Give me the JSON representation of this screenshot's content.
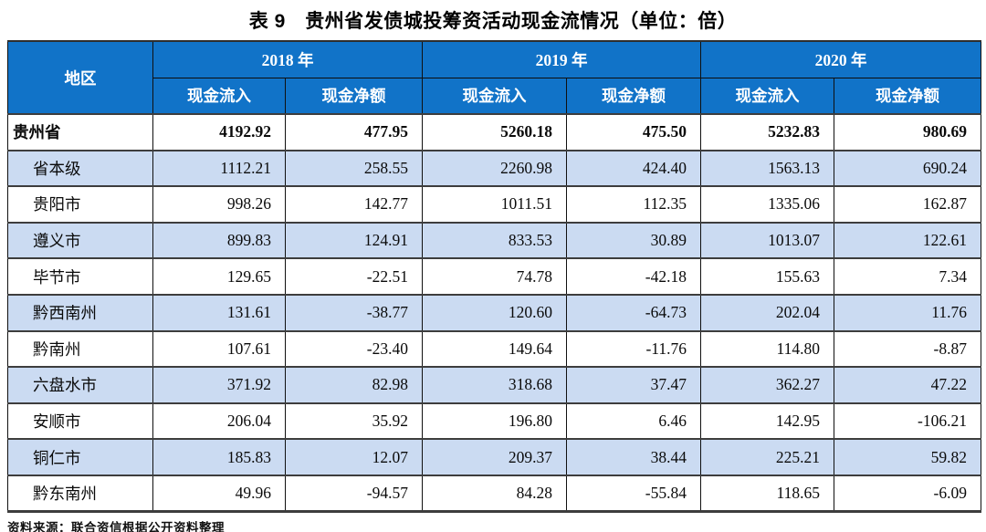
{
  "title": "表 9　贵州省发债城投筹资活动现金流情况（单位：倍）",
  "source_note": "资料来源：联合资信根据公开资料整理",
  "colors": {
    "header_bg": "#1173C8",
    "header_text": "#FFFFFF",
    "stripe_bg": "#CBDBF2",
    "horizontal_line": "#3D3D3D",
    "vertical_line": "#101010"
  },
  "table": {
    "region_header": "地区",
    "year_groups": [
      {
        "label": "2018 年",
        "columns": [
          "现金流入",
          "现金净额"
        ]
      },
      {
        "label": "2019 年",
        "columns": [
          "现金流入",
          "现金净额"
        ]
      },
      {
        "label": "2020 年",
        "columns": [
          "现金流入",
          "现金净额"
        ]
      }
    ],
    "rows": [
      {
        "region": "贵州省",
        "bold": true,
        "indent": false,
        "values": [
          "4192.92",
          "477.95",
          "5260.18",
          "475.50",
          "5232.83",
          "980.69"
        ]
      },
      {
        "region": "省本级",
        "bold": false,
        "indent": true,
        "values": [
          "1112.21",
          "258.55",
          "2260.98",
          "424.40",
          "1563.13",
          "690.24"
        ]
      },
      {
        "region": "贵阳市",
        "bold": false,
        "indent": true,
        "values": [
          "998.26",
          "142.77",
          "1011.51",
          "112.35",
          "1335.06",
          "162.87"
        ]
      },
      {
        "region": "遵义市",
        "bold": false,
        "indent": true,
        "values": [
          "899.83",
          "124.91",
          "833.53",
          "30.89",
          "1013.07",
          "122.61"
        ]
      },
      {
        "region": "毕节市",
        "bold": false,
        "indent": true,
        "values": [
          "129.65",
          "-22.51",
          "74.78",
          "-42.18",
          "155.63",
          "7.34"
        ]
      },
      {
        "region": "黔西南州",
        "bold": false,
        "indent": true,
        "values": [
          "131.61",
          "-38.77",
          "120.60",
          "-64.73",
          "202.04",
          "11.76"
        ]
      },
      {
        "region": "黔南州",
        "bold": false,
        "indent": true,
        "values": [
          "107.61",
          "-23.40",
          "149.64",
          "-11.76",
          "114.80",
          "-8.87"
        ]
      },
      {
        "region": "六盘水市",
        "bold": false,
        "indent": true,
        "values": [
          "371.92",
          "82.98",
          "318.68",
          "37.47",
          "362.27",
          "47.22"
        ]
      },
      {
        "region": "安顺市",
        "bold": false,
        "indent": true,
        "values": [
          "206.04",
          "35.92",
          "196.80",
          "6.46",
          "142.95",
          "-106.21"
        ]
      },
      {
        "region": "铜仁市",
        "bold": false,
        "indent": true,
        "values": [
          "185.83",
          "12.07",
          "209.37",
          "38.44",
          "225.21",
          "59.82"
        ]
      },
      {
        "region": "黔东南州",
        "bold": false,
        "indent": true,
        "values": [
          "49.96",
          "-94.57",
          "84.28",
          "-55.84",
          "118.65",
          "-6.09"
        ]
      }
    ]
  }
}
